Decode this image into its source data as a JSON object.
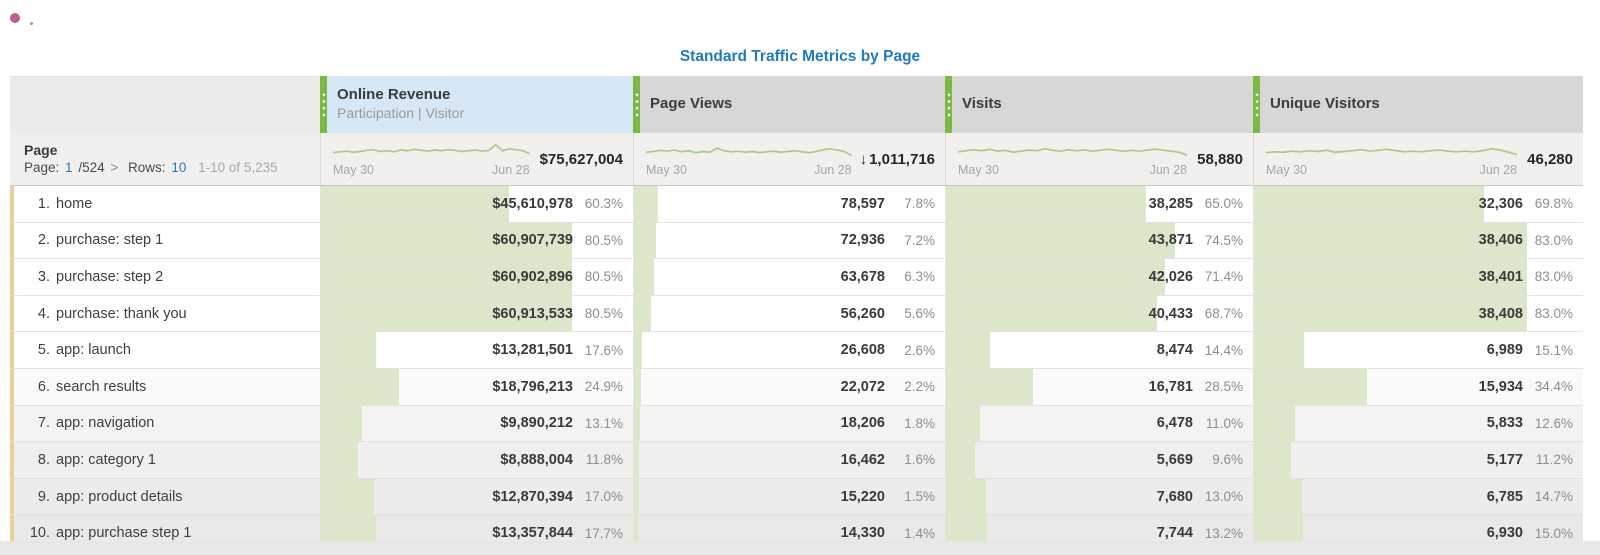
{
  "page": {
    "title": "Standard Traffic Metrics by Page"
  },
  "colors": {
    "title_blue": "#1f7bc1",
    "link_blue": "#2d77b5",
    "accent_green_handle": "#7cb942",
    "bar_green": "#dbe6cb",
    "sparkline_green": "#adc98a",
    "selected_header_bg": "#d6e7f5",
    "header_gray_bg": "#d8d7d6",
    "row_marker_tan": "#e9d096",
    "recording_dot_pink": "#bd5e92"
  },
  "table": {
    "row_axis": {
      "name": "Page",
      "pagination": {
        "page_label": "Page:",
        "current": "1",
        "total": "/524",
        "chevron": ">",
        "rows_label": "Rows:",
        "rows": "10",
        "range": "1-10 of 5,235"
      }
    },
    "columns": [
      {
        "label": "Online Revenue",
        "sublabel": "Participation | Visitor",
        "date_start": "May 30",
        "date_end": "Jun 28",
        "arrow": "",
        "total": "$75,627,004",
        "sparkline": [
          0.42,
          0.48,
          0.52,
          0.45,
          0.5,
          0.58,
          0.62,
          0.5,
          0.55,
          0.48,
          0.6,
          0.55,
          0.65,
          0.58,
          0.52,
          0.6,
          0.55,
          0.62,
          0.58,
          0.5,
          0.55,
          0.6,
          0.52,
          0.58,
          0.95,
          0.55,
          0.68,
          0.62,
          0.55,
          0.35
        ]
      },
      {
        "label": "Page Views",
        "sublabel": "",
        "date_start": "May 30",
        "date_end": "Jun 28",
        "arrow": "↓",
        "total": "1,011,716",
        "sparkline": [
          0.45,
          0.5,
          0.58,
          0.52,
          0.6,
          0.48,
          0.55,
          0.42,
          0.5,
          0.45,
          0.72,
          0.55,
          0.48,
          0.52,
          0.45,
          0.5,
          0.42,
          0.48,
          0.52,
          0.45,
          0.5,
          0.55,
          0.48,
          0.42,
          0.5,
          0.62,
          0.68,
          0.6,
          0.5,
          0.22
        ]
      },
      {
        "label": "Visits",
        "sublabel": "",
        "date_start": "May 30",
        "date_end": "Jun 28",
        "arrow": "",
        "total": "58,880",
        "sparkline": [
          0.48,
          0.55,
          0.62,
          0.55,
          0.65,
          0.52,
          0.58,
          0.45,
          0.52,
          0.6,
          0.55,
          0.68,
          0.58,
          0.52,
          0.62,
          0.55,
          0.6,
          0.52,
          0.58,
          0.65,
          0.58,
          0.52,
          0.58,
          0.52,
          0.6,
          0.66,
          0.58,
          0.52,
          0.45,
          0.25
        ]
      },
      {
        "label": "Unique Visitors",
        "sublabel": "",
        "date_start": "May 30",
        "date_end": "Jun 28",
        "arrow": "",
        "total": "46,280",
        "sparkline": [
          0.42,
          0.48,
          0.45,
          0.52,
          0.48,
          0.55,
          0.5,
          0.58,
          0.45,
          0.5,
          0.55,
          0.62,
          0.52,
          0.58,
          0.65,
          0.55,
          0.48,
          0.52,
          0.48,
          0.55,
          0.6,
          0.52,
          0.48,
          0.52,
          0.48,
          0.55,
          0.68,
          0.6,
          0.45,
          0.3
        ]
      }
    ],
    "rows": [
      {
        "rank": "1.",
        "name": "home",
        "metrics": [
          {
            "value": "$45,610,978",
            "pct": "60.3%",
            "bar": 60.3
          },
          {
            "value": "78,597",
            "pct": "7.8%",
            "bar": 7.8
          },
          {
            "value": "38,285",
            "pct": "65.0%",
            "bar": 65.0
          },
          {
            "value": "32,306",
            "pct": "69.8%",
            "bar": 69.8
          }
        ]
      },
      {
        "rank": "2.",
        "name": "purchase: step 1",
        "metrics": [
          {
            "value": "$60,907,739",
            "pct": "80.5%",
            "bar": 80.5
          },
          {
            "value": "72,936",
            "pct": "7.2%",
            "bar": 7.2
          },
          {
            "value": "43,871",
            "pct": "74.5%",
            "bar": 74.5
          },
          {
            "value": "38,406",
            "pct": "83.0%",
            "bar": 83.0
          }
        ]
      },
      {
        "rank": "3.",
        "name": "purchase: step 2",
        "metrics": [
          {
            "value": "$60,902,896",
            "pct": "80.5%",
            "bar": 80.5
          },
          {
            "value": "63,678",
            "pct": "6.3%",
            "bar": 6.3
          },
          {
            "value": "42,026",
            "pct": "71.4%",
            "bar": 71.4
          },
          {
            "value": "38,401",
            "pct": "83.0%",
            "bar": 83.0
          }
        ]
      },
      {
        "rank": "4.",
        "name": "purchase: thank you",
        "metrics": [
          {
            "value": "$60,913,533",
            "pct": "80.5%",
            "bar": 80.5
          },
          {
            "value": "56,260",
            "pct": "5.6%",
            "bar": 5.6
          },
          {
            "value": "40,433",
            "pct": "68.7%",
            "bar": 68.7
          },
          {
            "value": "38,408",
            "pct": "83.0%",
            "bar": 83.0
          }
        ]
      },
      {
        "rank": "5.",
        "name": "app: launch",
        "metrics": [
          {
            "value": "$13,281,501",
            "pct": "17.6%",
            "bar": 17.6
          },
          {
            "value": "26,608",
            "pct": "2.6%",
            "bar": 2.6
          },
          {
            "value": "8,474",
            "pct": "14.4%",
            "bar": 14.4
          },
          {
            "value": "6,989",
            "pct": "15.1%",
            "bar": 15.1
          }
        ]
      },
      {
        "rank": "6.",
        "name": "search results",
        "metrics": [
          {
            "value": "$18,796,213",
            "pct": "24.9%",
            "bar": 24.9
          },
          {
            "value": "22,072",
            "pct": "2.2%",
            "bar": 2.2
          },
          {
            "value": "16,781",
            "pct": "28.5%",
            "bar": 28.5
          },
          {
            "value": "15,934",
            "pct": "34.4%",
            "bar": 34.4
          }
        ]
      },
      {
        "rank": "7.",
        "name": "app: navigation",
        "metrics": [
          {
            "value": "$9,890,212",
            "pct": "13.1%",
            "bar": 13.1
          },
          {
            "value": "18,206",
            "pct": "1.8%",
            "bar": 1.8
          },
          {
            "value": "6,478",
            "pct": "11.0%",
            "bar": 11.0
          },
          {
            "value": "5,833",
            "pct": "12.6%",
            "bar": 12.6
          }
        ]
      },
      {
        "rank": "8.",
        "name": "app: category 1",
        "metrics": [
          {
            "value": "$8,888,004",
            "pct": "11.8%",
            "bar": 11.8
          },
          {
            "value": "16,462",
            "pct": "1.6%",
            "bar": 1.6
          },
          {
            "value": "5,669",
            "pct": "9.6%",
            "bar": 9.6
          },
          {
            "value": "5,177",
            "pct": "11.2%",
            "bar": 11.2
          }
        ]
      },
      {
        "rank": "9.",
        "name": "app: product details",
        "metrics": [
          {
            "value": "$12,870,394",
            "pct": "17.0%",
            "bar": 17.0
          },
          {
            "value": "15,220",
            "pct": "1.5%",
            "bar": 1.5
          },
          {
            "value": "7,680",
            "pct": "13.0%",
            "bar": 13.0
          },
          {
            "value": "6,785",
            "pct": "14.7%",
            "bar": 14.7
          }
        ]
      },
      {
        "rank": "10.",
        "name": "app: purchase step 1",
        "metrics": [
          {
            "value": "$13,357,844",
            "pct": "17.7%",
            "bar": 17.7
          },
          {
            "value": "14,330",
            "pct": "1.4%",
            "bar": 1.4
          },
          {
            "value": "7,744",
            "pct": "13.2%",
            "bar": 13.2
          },
          {
            "value": "6,930",
            "pct": "15.0%",
            "bar": 15.0
          }
        ]
      }
    ]
  }
}
